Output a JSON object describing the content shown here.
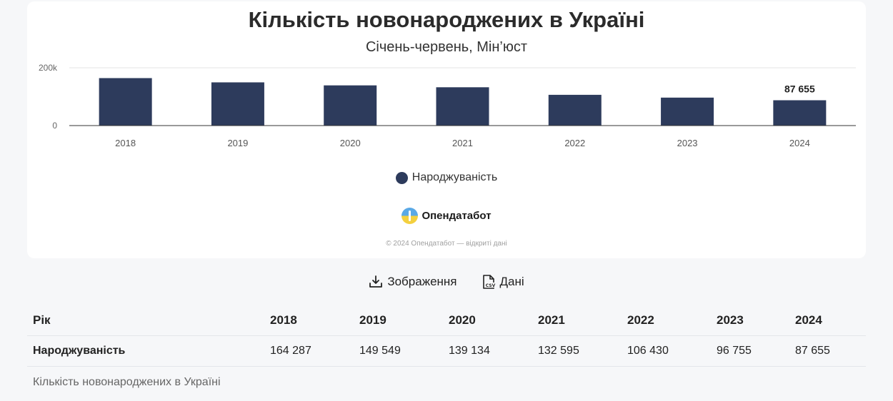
{
  "chart_data": {
    "type": "bar",
    "title": "Кількість новонароджених в Україні",
    "subtitle": "Січень-червень, Мін’юст",
    "categories": [
      "2018",
      "2019",
      "2020",
      "2021",
      "2022",
      "2023",
      "2024"
    ],
    "series": [
      {
        "name": "Народжуваність",
        "values": [
          164287,
          149549,
          139134,
          132595,
          106430,
          96755,
          87655
        ]
      }
    ],
    "ylim": [
      0,
      200000
    ],
    "y_ticks": [
      {
        "value": 0,
        "label": "0"
      },
      {
        "value": 200000,
        "label": "200k"
      }
    ],
    "data_labels": [
      {
        "index": 6,
        "text": "87 655"
      }
    ],
    "grid": true,
    "legend_position": "bottom",
    "bar_color": "#2d3b5c"
  },
  "branding": {
    "name": "Опендатабот",
    "copyright": "© 2024 Опендатабот — відкриті дані"
  },
  "actions": {
    "image_label": "Зображення",
    "data_label": "Дані",
    "image_icon": "download-icon",
    "data_icon": "csv-file-icon"
  },
  "table": {
    "header_label": "Рік",
    "years": [
      "2018",
      "2019",
      "2020",
      "2021",
      "2022",
      "2023",
      "2024"
    ],
    "row_label": "Народжуваність",
    "values": [
      "164 287",
      "149 549",
      "139 134",
      "132 595",
      "106 430",
      "96 755",
      "87 655"
    ],
    "caption": "Кількість новонароджених в Україні"
  }
}
